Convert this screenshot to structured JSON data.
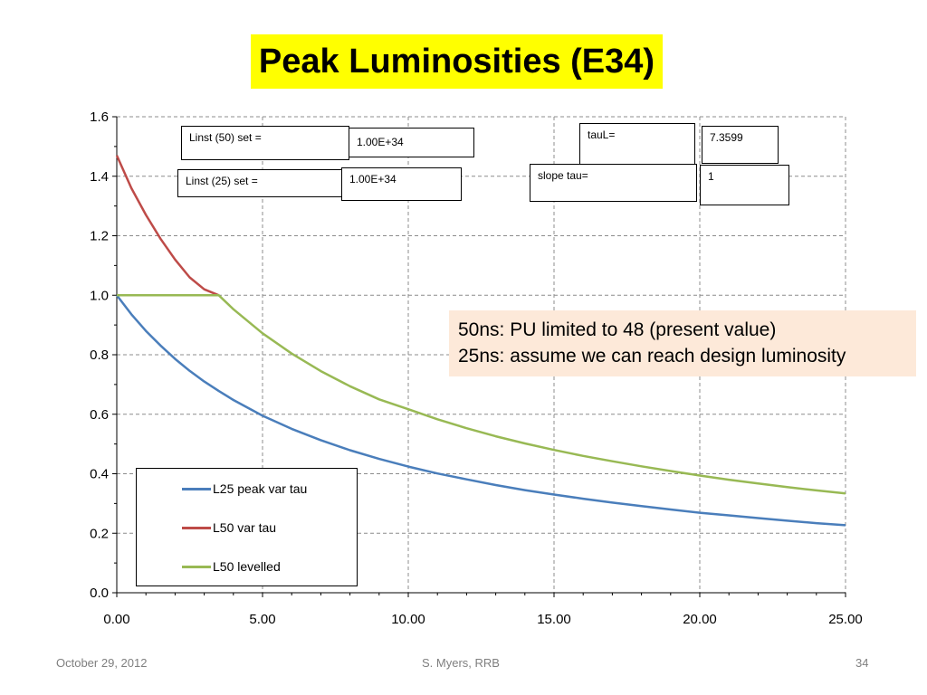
{
  "slide": {
    "title": "Peak Luminosities (E34)",
    "footer": {
      "date": "October 29, 2012",
      "author": "S. Myers, RRB",
      "page": "34"
    },
    "note": {
      "line1": "50ns: PU limited to 48 (present value)",
      "line2": "25ns: assume we can reach design luminosity",
      "background": "#fde9d9"
    },
    "param_boxes": {
      "linst50_label": "Linst (50) set =",
      "linst50_value": "1.00E+34",
      "linst25_label": "Linst (25) set =",
      "linst25_value": "1.00E+34",
      "taul_label": "tauL=",
      "taul_value": "7.3599",
      "slope_label": "slope tau=",
      "slope_value": "1"
    }
  },
  "chart_data": {
    "type": "line",
    "x_range": [
      0,
      25
    ],
    "y_range": [
      0,
      1.6
    ],
    "x_ticks": [
      "0.00",
      "5.00",
      "10.00",
      "15.00",
      "20.00",
      "25.00"
    ],
    "y_ticks": [
      "0.0",
      "0.2",
      "0.4",
      "0.6",
      "0.8",
      "1.0",
      "1.2",
      "1.4",
      "1.6"
    ],
    "grid": true,
    "legend_position": "bottom-left",
    "series": [
      {
        "name": "L25 peak var tau",
        "color": "#4a7ebb",
        "x": [
          0,
          0.5,
          1,
          1.5,
          2,
          2.5,
          3,
          3.5,
          4,
          5,
          6,
          7,
          8,
          9,
          10,
          11,
          12,
          13,
          14,
          15,
          16,
          17,
          18,
          19,
          20,
          21,
          22,
          23,
          24,
          25
        ],
        "y": [
          1.0,
          0.936,
          0.88,
          0.831,
          0.786,
          0.746,
          0.71,
          0.678,
          0.648,
          0.595,
          0.551,
          0.513,
          0.479,
          0.45,
          0.424,
          0.401,
          0.381,
          0.362,
          0.345,
          0.33,
          0.316,
          0.303,
          0.291,
          0.28,
          0.269,
          0.26,
          0.251,
          0.242,
          0.234,
          0.227
        ]
      },
      {
        "name": "L50 var tau",
        "color": "#be4b48",
        "x": [
          0,
          0.5,
          1,
          1.5,
          2,
          2.5,
          3,
          3.5
        ],
        "y": [
          1.47,
          1.36,
          1.27,
          1.19,
          1.12,
          1.06,
          1.02,
          1.0
        ]
      },
      {
        "name": "L50 levelled",
        "color": "#98b954",
        "x": [
          0,
          0.5,
          1,
          1.5,
          2,
          2.5,
          3,
          3.5,
          4,
          5,
          6,
          7,
          8,
          9,
          10,
          11,
          12,
          13,
          14,
          15,
          16,
          17,
          18,
          19,
          20,
          21,
          22,
          23,
          24,
          25
        ],
        "y": [
          1.0,
          1.0,
          1.0,
          1.0,
          1.0,
          1.0,
          1.0,
          1.0,
          0.953,
          0.872,
          0.804,
          0.745,
          0.694,
          0.65,
          0.617,
          0.583,
          0.553,
          0.526,
          0.502,
          0.48,
          0.46,
          0.442,
          0.425,
          0.409,
          0.394,
          0.38,
          0.367,
          0.355,
          0.344,
          0.334
        ]
      }
    ]
  }
}
